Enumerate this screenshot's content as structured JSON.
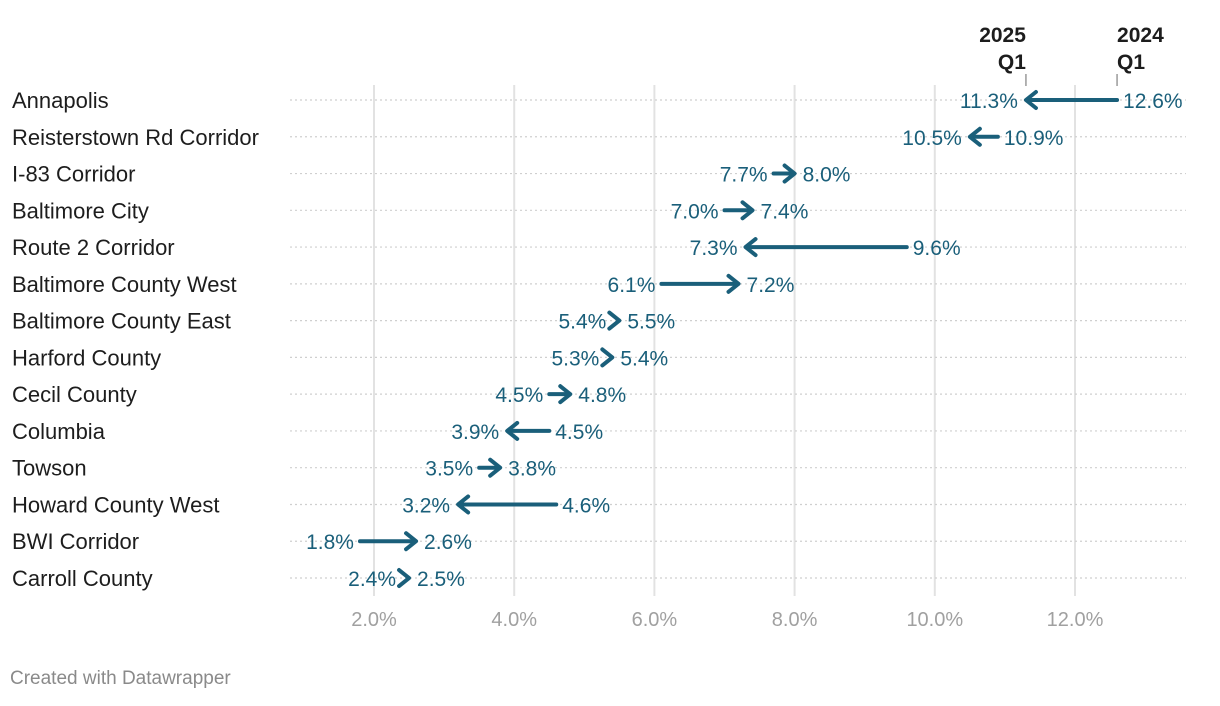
{
  "chart_data": {
    "type": "arrow",
    "title": "",
    "xlabel": "",
    "ylabel": "",
    "xlim": [
      0.5,
      13.6
    ],
    "x_ticks": [
      2,
      4,
      6,
      8,
      10,
      12
    ],
    "x_tick_labels": [
      "2.0%",
      "4.0%",
      "6.0%",
      "8.0%",
      "10.0%",
      "12.0%"
    ],
    "start_series": "2024 Q1",
    "end_series": "2025 Q1",
    "start_header": [
      "2024",
      "Q1"
    ],
    "end_header": [
      "2025",
      "Q1"
    ],
    "header_row": "Annapolis",
    "color": "#1a5f7a",
    "rows": [
      {
        "label": "Annapolis",
        "start": 12.6,
        "end": 11.3,
        "start_label": "12.6%",
        "end_label": "11.3%"
      },
      {
        "label": "Reisterstown Rd Corridor",
        "start": 10.9,
        "end": 10.5,
        "start_label": "10.9%",
        "end_label": "10.5%"
      },
      {
        "label": "I-83 Corridor",
        "start": 7.7,
        "end": 8.0,
        "start_label": "7.7%",
        "end_label": "8.0%"
      },
      {
        "label": "Baltimore City",
        "start": 7.0,
        "end": 7.4,
        "start_label": "7.0%",
        "end_label": "7.4%"
      },
      {
        "label": "Route 2 Corridor",
        "start": 9.6,
        "end": 7.3,
        "start_label": "9.6%",
        "end_label": "7.3%"
      },
      {
        "label": "Baltimore County West",
        "start": 6.1,
        "end": 7.2,
        "start_label": "6.1%",
        "end_label": "7.2%"
      },
      {
        "label": "Baltimore County East",
        "start": 5.4,
        "end": 5.5,
        "start_label": "5.4%",
        "end_label": "5.5%"
      },
      {
        "label": "Harford County",
        "start": 5.3,
        "end": 5.4,
        "start_label": "5.3%",
        "end_label": "5.4%"
      },
      {
        "label": "Cecil County",
        "start": 4.5,
        "end": 4.8,
        "start_label": "4.5%",
        "end_label": "4.8%"
      },
      {
        "label": "Columbia",
        "start": 4.5,
        "end": 3.9,
        "start_label": "4.5%",
        "end_label": "3.9%"
      },
      {
        "label": "Towson",
        "start": 3.5,
        "end": 3.8,
        "start_label": "3.5%",
        "end_label": "3.8%"
      },
      {
        "label": "Howard County West",
        "start": 4.6,
        "end": 3.2,
        "start_label": "4.6%",
        "end_label": "3.2%"
      },
      {
        "label": "BWI Corridor",
        "start": 1.8,
        "end": 2.6,
        "start_label": "1.8%",
        "end_label": "2.6%"
      },
      {
        "label": "Carroll County",
        "start": 2.4,
        "end": 2.5,
        "start_label": "2.4%",
        "end_label": "2.5%"
      }
    ],
    "grid": true
  },
  "footer": {
    "credit": "Created with Datawrapper"
  },
  "colors": {
    "grid": "#e2e2e2",
    "dots": "#cfcfcf",
    "text": "#1d1d1d",
    "tick": "#a0a0a0"
  }
}
